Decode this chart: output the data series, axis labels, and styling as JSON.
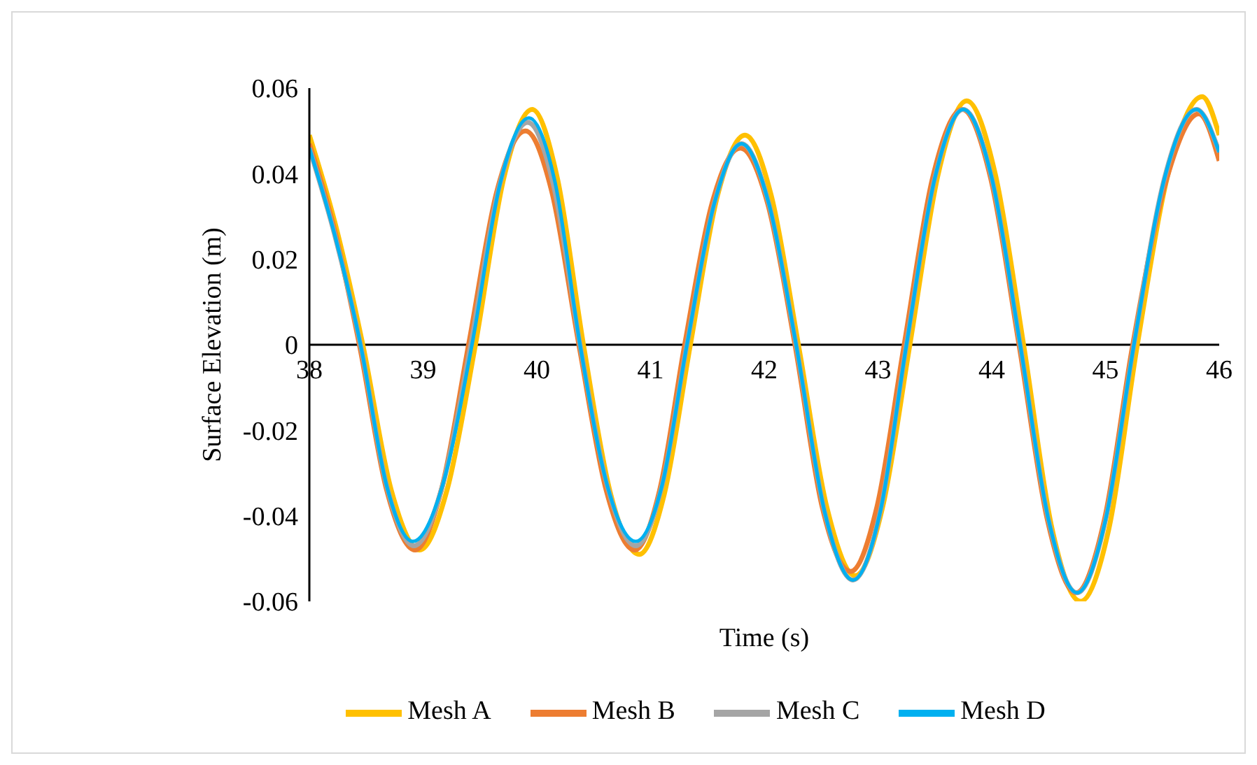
{
  "chart_data": {
    "type": "line",
    "xlabel": "Time (s)",
    "ylabel": "Surface Elevation (m)",
    "xlim": [
      38,
      46
    ],
    "xticks": [
      38,
      39,
      40,
      41,
      42,
      43,
      44,
      45,
      46
    ],
    "ylim": [
      -0.06,
      0.06
    ],
    "yticks": [
      -0.06,
      -0.04,
      -0.02,
      0,
      0.02,
      0.04,
      0.06
    ],
    "grid": false,
    "legend": "bottom",
    "marker": "none",
    "line_style": "solid",
    "series": [
      {
        "name": "Mesh A",
        "color": "#ffc000",
        "x": [
          38,
          38.23,
          38.47,
          38.72,
          38.97,
          39.21,
          39.46,
          39.71,
          39.96,
          40.18,
          40.41,
          40.65,
          40.9,
          41.12,
          41.35,
          41.59,
          41.83,
          42.06,
          42.3,
          42.55,
          42.8,
          43.04,
          43.28,
          43.53,
          43.78,
          44.03,
          44.28,
          44.53,
          44.78,
          45.03,
          45.28,
          45.56,
          45.85,
          46
        ],
        "values": [
          0.049,
          0.028,
          0,
          -0.034,
          -0.048,
          -0.034,
          0,
          0.039,
          0.055,
          0.039,
          0,
          -0.035,
          -0.049,
          -0.035,
          0,
          0.035,
          0.049,
          0.035,
          0,
          -0.038,
          -0.054,
          -0.038,
          0,
          0.04,
          0.057,
          0.04,
          0,
          -0.043,
          -0.06,
          -0.043,
          0,
          0.041,
          0.058,
          0.049
        ]
      },
      {
        "name": "Mesh B",
        "color": "#ed7d31",
        "x": [
          38,
          38.22,
          38.44,
          38.68,
          38.93,
          39.16,
          39.4,
          39.65,
          39.9,
          40.13,
          40.37,
          40.61,
          40.86,
          41.08,
          41.3,
          41.54,
          41.79,
          42.03,
          42.27,
          42.51,
          42.76,
          42.99,
          43.23,
          43.48,
          43.74,
          43.99,
          44.24,
          44.49,
          44.74,
          44.99,
          45.24,
          45.53,
          45.82,
          46
        ],
        "values": [
          0.047,
          0.027,
          0,
          -0.034,
          -0.048,
          -0.034,
          0,
          0.036,
          0.05,
          0.036,
          0,
          -0.034,
          -0.048,
          -0.034,
          0,
          0.033,
          0.046,
          0.033,
          0,
          -0.038,
          -0.053,
          -0.038,
          0,
          0.039,
          0.055,
          0.039,
          0,
          -0.041,
          -0.058,
          -0.041,
          0,
          0.038,
          0.054,
          0.043
        ]
      },
      {
        "name": "Mesh C",
        "color": "#a5a5a5",
        "x": [
          38,
          38.22,
          38.45,
          38.68,
          38.92,
          39.17,
          39.42,
          39.67,
          39.92,
          40.15,
          40.38,
          40.62,
          40.87,
          41.1,
          41.32,
          41.56,
          41.8,
          42.04,
          42.28,
          42.53,
          42.78,
          43.02,
          43.25,
          43.5,
          43.75,
          44,
          44.25,
          44.5,
          44.75,
          45,
          45.25,
          45.52,
          45.8,
          46
        ],
        "values": [
          0.046,
          0.026,
          0,
          -0.033,
          -0.047,
          -0.033,
          0,
          0.037,
          0.052,
          0.037,
          0,
          -0.033,
          -0.047,
          -0.033,
          0,
          0.033,
          0.047,
          0.033,
          0,
          -0.039,
          -0.055,
          -0.039,
          0,
          0.039,
          0.055,
          0.039,
          0,
          -0.041,
          -0.058,
          -0.041,
          0,
          0.039,
          0.055,
          0.045
        ]
      },
      {
        "name": "Mesh D",
        "color": "#00b0f0",
        "x": [
          38,
          38.22,
          38.45,
          38.68,
          38.91,
          39.17,
          39.43,
          39.68,
          39.93,
          40.16,
          40.38,
          40.62,
          40.87,
          41.1,
          41.32,
          41.56,
          41.8,
          42.04,
          42.28,
          42.53,
          42.78,
          43.02,
          43.25,
          43.5,
          43.75,
          44,
          44.25,
          44.5,
          44.75,
          45,
          45.25,
          45.52,
          45.8,
          46
        ],
        "values": [
          0.046,
          0.026,
          0,
          -0.033,
          -0.046,
          -0.033,
          0,
          0.038,
          0.053,
          0.038,
          0,
          -0.033,
          -0.046,
          -0.033,
          0,
          0.033,
          0.047,
          0.033,
          0,
          -0.039,
          -0.055,
          -0.039,
          0,
          0.039,
          0.055,
          0.039,
          0,
          -0.041,
          -0.058,
          -0.041,
          0,
          0.039,
          0.055,
          0.045
        ]
      }
    ]
  }
}
